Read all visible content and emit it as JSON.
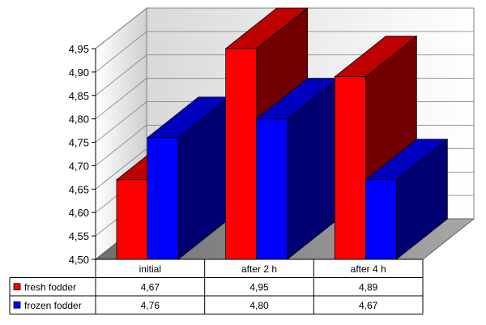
{
  "chart_data": {
    "type": "bar",
    "title": "",
    "xlabel": "",
    "ylabel": "",
    "categories": [
      "initial",
      "after 2 h",
      "after 4 h"
    ],
    "series": [
      {
        "name": "fresh fodder",
        "color": "#ff0000",
        "values": [
          4.67,
          4.95,
          4.89
        ],
        "labels": [
          "4,67",
          "4,95",
          "4,89"
        ]
      },
      {
        "name": "frozen fodder",
        "color": "#0000ff",
        "values": [
          4.76,
          4.8,
          4.67
        ],
        "labels": [
          "4,76",
          "4,80",
          "4,67"
        ]
      }
    ],
    "ylim": [
      4.5,
      4.95
    ],
    "yticks": [
      4.5,
      4.55,
      4.6,
      4.65,
      4.7,
      4.75,
      4.8,
      4.85,
      4.9,
      4.95
    ],
    "ytick_labels": [
      "4,50",
      "4,55",
      "4,60",
      "4,65",
      "4,70",
      "4,75",
      "4,80",
      "4,85",
      "4,90",
      "4,95"
    ],
    "grid": true,
    "three_d": true,
    "legend": "data-table"
  }
}
